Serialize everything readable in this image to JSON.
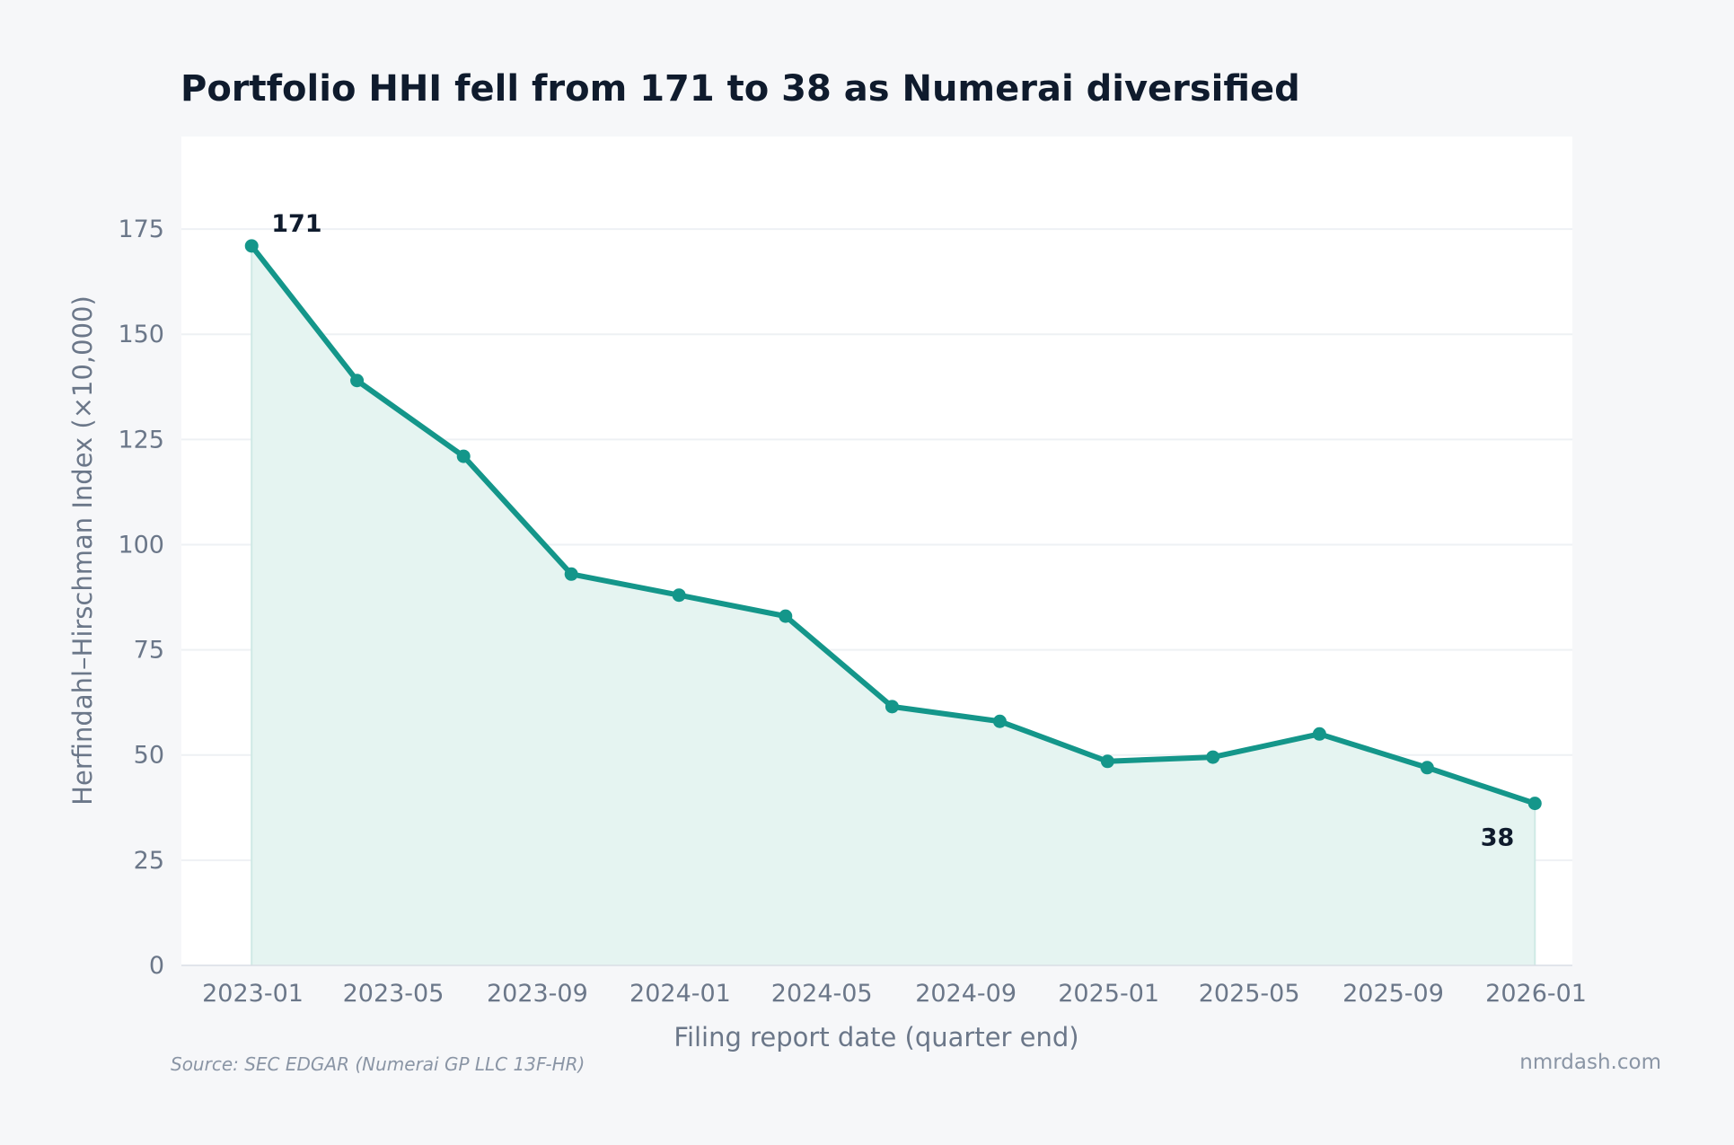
{
  "colors": {
    "background": "#f6f7f9",
    "plot_background": "#ffffff",
    "line": "#14968a",
    "area_fill": "#e5f4f1",
    "grid": "#eef1f4",
    "text_dark": "#0f1b2d",
    "text_muted": "#6b7789"
  },
  "footer": {
    "source": "Source: SEC EDGAR (Numerai GP LLC 13F-HR)",
    "brand": "nmrdash.com"
  },
  "chart_data": {
    "type": "line",
    "title": "Portfolio HHI fell from 171 to 38 as Numerai diversified",
    "xlabel": "Filing report date (quarter end)",
    "ylabel": "Herfindahl–Hirschman Index (×10,000)",
    "x": [
      "2022-12-31",
      "2023-03-31",
      "2023-06-30",
      "2023-09-30",
      "2023-12-31",
      "2024-03-31",
      "2024-06-30",
      "2024-09-30",
      "2024-12-31",
      "2025-03-31",
      "2025-06-30",
      "2025-09-30",
      "2025-12-31"
    ],
    "series": [
      {
        "name": "",
        "values": [
          171,
          139,
          121,
          93,
          88,
          83,
          61.5,
          58,
          48.5,
          49.5,
          55,
          47,
          38.5
        ]
      }
    ],
    "xticks": [
      "2023-01",
      "2023-05",
      "2023-09",
      "2024-01",
      "2024-05",
      "2024-09",
      "2025-01",
      "2025-05",
      "2025-09",
      "2026-01"
    ],
    "yticks": [
      0,
      25,
      50,
      75,
      100,
      125,
      150,
      175
    ],
    "xlim": [
      "2022-11-01",
      "2026-02-01"
    ],
    "ylim": [
      0,
      197
    ],
    "grid": true,
    "area_fill": true,
    "annotations": [
      {
        "text": "171",
        "point_index": 0
      },
      {
        "text": "38",
        "point_index": 12
      }
    ]
  }
}
